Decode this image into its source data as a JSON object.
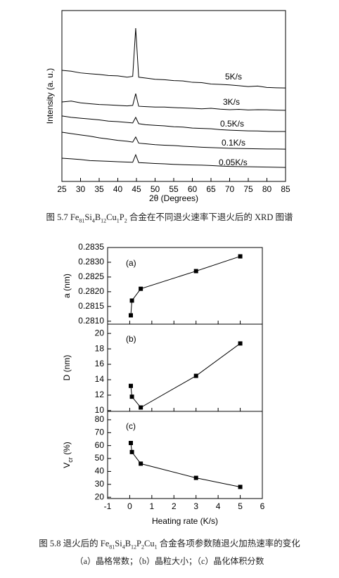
{
  "chart_data": [
    {
      "type": "line",
      "xlabel": "2θ (Degrees)",
      "ylabel": "Intensity (a. u.)",
      "xlim": [
        25,
        85
      ],
      "xticks": [
        25,
        30,
        35,
        40,
        45,
        50,
        55,
        60,
        65,
        70,
        75,
        80,
        85
      ],
      "ylim": [
        0,
        100
      ],
      "x": [
        25,
        27.5,
        30,
        32.5,
        35,
        37.5,
        40,
        42.5,
        44,
        44.8,
        45.6,
        47.5,
        50,
        52.5,
        55,
        57.5,
        60,
        62.5,
        65,
        67.5,
        70,
        72.5,
        75,
        77.5,
        80,
        82.5,
        85
      ],
      "series": [
        {
          "name": "5K/s",
          "color": "#000000",
          "values": [
            65,
            64.5,
            63.5,
            63,
            62.6,
            62,
            61.8,
            61,
            61.5,
            89.7,
            61,
            60.5,
            59.8,
            59.5,
            59,
            58.8,
            58,
            57.8,
            57,
            56.8,
            56.5,
            56,
            55.5,
            55.8,
            55,
            54.8,
            54.7
          ]
        },
        {
          "name": "3K/s",
          "color": "#000000",
          "values": [
            46.5,
            47,
            46,
            45.5,
            45,
            44.8,
            44.5,
            44.2,
            44.5,
            51.4,
            44,
            43.8,
            43.5,
            43.5,
            43.2,
            43,
            42.8,
            42.5,
            42.8,
            42.3,
            42,
            42.2,
            41.8,
            42,
            41.9,
            41.7,
            41.6
          ]
        },
        {
          "name": "0.5K/s",
          "color": "#000000",
          "values": [
            38.3,
            37.5,
            37,
            36.5,
            36,
            35.3,
            35,
            34.5,
            34.2,
            37.5,
            33.8,
            33.2,
            32.8,
            32.5,
            32,
            31.8,
            31.2,
            31,
            30.8,
            30.3,
            30,
            29.8,
            29.6,
            29.5,
            29.3,
            29.2,
            29.2
          ]
        },
        {
          "name": "0.1K/s",
          "color": "#000000",
          "values": [
            28.8,
            28,
            27.2,
            26.5,
            25.5,
            24.8,
            24,
            23.5,
            23,
            26,
            22.4,
            22,
            21.5,
            21.2,
            21,
            20.6,
            20.3,
            20,
            19.8,
            19.6,
            19.4,
            19.3,
            19.2,
            19.1,
            19,
            19,
            18.9
          ]
        },
        {
          "name": "0.05K/s",
          "color": "#000000",
          "values": [
            13.6,
            13.2,
            12.8,
            12.2,
            12,
            11.8,
            11.5,
            11.3,
            11.2,
            15.6,
            11,
            10.8,
            10.5,
            10.3,
            10,
            9.8,
            9.6,
            9.5,
            9.3,
            9,
            8.8,
            8.7,
            8.6,
            8.5,
            8.4,
            8.3,
            8.2
          ]
        }
      ]
    },
    {
      "type": "line",
      "annotation": "(a)",
      "ylabel": [
        {
          "text": "a (nm)",
          "sub": false
        }
      ],
      "xlim": [
        -1,
        6
      ],
      "ylim": [
        0.2809,
        0.2835
      ],
      "yticks": [
        {
          "value": 0.281,
          "label": "0.2810"
        },
        {
          "value": 0.2815,
          "label": "0.2815"
        },
        {
          "value": 0.282,
          "label": "0.2820"
        },
        {
          "value": 0.2825,
          "label": "0.2825"
        },
        {
          "value": 0.283,
          "label": "0.2830"
        },
        {
          "value": 0.2835,
          "label": "0.2835"
        }
      ],
      "x": [
        0.05,
        0.1,
        0.5,
        3,
        5
      ],
      "values": [
        0.2812,
        0.2817,
        0.2821,
        0.2827,
        0.2832
      ],
      "color": "#000000"
    },
    {
      "type": "line",
      "annotation": "(b)",
      "ylabel": [
        {
          "text": "D (nm)",
          "sub": false
        }
      ],
      "xlim": [
        -1,
        6
      ],
      "ylim": [
        9.9,
        21.2
      ],
      "yticks": [
        10,
        12,
        14,
        16,
        18,
        20
      ],
      "x": [
        0.05,
        0.1,
        0.5,
        3,
        5
      ],
      "values": [
        13.2,
        11.8,
        10.4,
        14.5,
        18.7
      ],
      "color": "#000000"
    },
    {
      "type": "line",
      "annotation": "(c)",
      "ylabel": [
        {
          "text": "V",
          "sub": false
        },
        {
          "text": "cr",
          "sub": true
        },
        {
          "text": " (%)",
          "sub": false
        }
      ],
      "xlabel": "Heating rate (K/s)",
      "xlim": [
        -1,
        6
      ],
      "xticks": [
        -1,
        0,
        1,
        2,
        3,
        4,
        5,
        6
      ],
      "ylim": [
        19,
        86.5
      ],
      "yticks": [
        20,
        30,
        40,
        50,
        60,
        70,
        80
      ],
      "x": [
        0.05,
        0.1,
        0.5,
        3,
        5
      ],
      "values": [
        62,
        55,
        46,
        35,
        28
      ],
      "color": "#000000"
    }
  ],
  "captions": [
    [
      {
        "text": "图 5.7 Fe",
        "sub": false
      },
      {
        "text": "81",
        "sub": true
      },
      {
        "text": "Si",
        "sub": false
      },
      {
        "text": "4",
        "sub": true
      },
      {
        "text": "B",
        "sub": false
      },
      {
        "text": "12",
        "sub": true
      },
      {
        "text": "Cu",
        "sub": false
      },
      {
        "text": "1",
        "sub": true
      },
      {
        "text": "P",
        "sub": false
      },
      {
        "text": "2",
        "sub": true
      },
      {
        "text": " 合金在不同退火速率下退火后的 XRD 图谱",
        "sub": false
      }
    ],
    [
      {
        "text": "图 5.8  退火后的 Fe",
        "sub": false
      },
      {
        "text": "81",
        "sub": true
      },
      {
        "text": "Si",
        "sub": false
      },
      {
        "text": "4",
        "sub": true
      },
      {
        "text": "B",
        "sub": false
      },
      {
        "text": "12",
        "sub": true
      },
      {
        "text": "P",
        "sub": false
      },
      {
        "text": "2",
        "sub": true
      },
      {
        "text": "Cu",
        "sub": false
      },
      {
        "text": "1",
        "sub": true
      },
      {
        "text": " 合金各项参数随退火加热速率的变化",
        "sub": false
      }
    ],
    [
      {
        "text": "（a）晶格常数；（b）晶粒大小；（c）晶化体积分数",
        "sub": false
      }
    ]
  ]
}
